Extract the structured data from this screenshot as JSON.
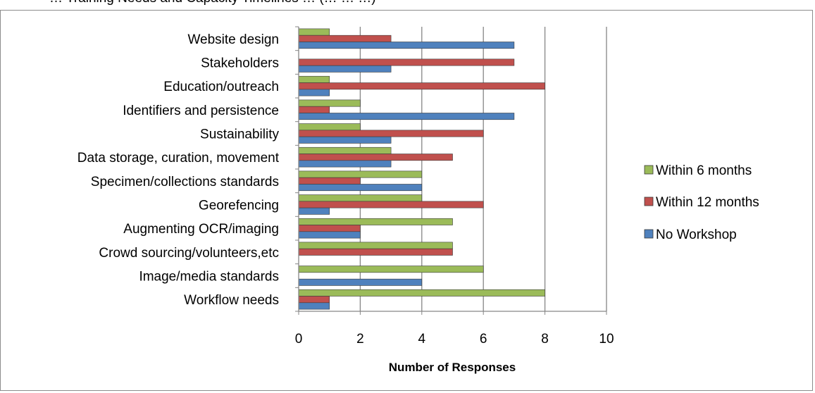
{
  "chart_data": {
    "type": "bar",
    "orientation": "horizontal",
    "title": "… Training Needs and Capacity Timelines … (… … …)",
    "xlabel": "Number of Responses",
    "ylabel": "",
    "xlim": [
      0,
      10
    ],
    "xticks": [
      "0",
      "2",
      "4",
      "6",
      "8",
      "10"
    ],
    "grid": true,
    "legend_position": "right",
    "categories": [
      "Website design",
      "Stakeholders",
      "Education/outreach",
      "Identifiers and persistence",
      "Sustainability",
      "Data storage, curation, movement",
      "Specimen/collections standards",
      "Georefencing",
      "Augmenting OCR/imaging",
      "Crowd sourcing/volunteers,etc",
      "Image/media standards",
      "Workflow needs"
    ],
    "series": [
      {
        "name": "Within 6 months",
        "color": "#9bbb59",
        "values": [
          1,
          0,
          1,
          2,
          2,
          3,
          4,
          4,
          5,
          5,
          6,
          8
        ]
      },
      {
        "name": "Within 12 months",
        "color": "#c0504d",
        "values": [
          3,
          7,
          8,
          1,
          6,
          5,
          2,
          6,
          2,
          5,
          0,
          1
        ]
      },
      {
        "name": "No Workshop",
        "color": "#4f81bd",
        "values": [
          7,
          3,
          1,
          7,
          3,
          3,
          4,
          1,
          2,
          0,
          4,
          1
        ]
      }
    ]
  }
}
